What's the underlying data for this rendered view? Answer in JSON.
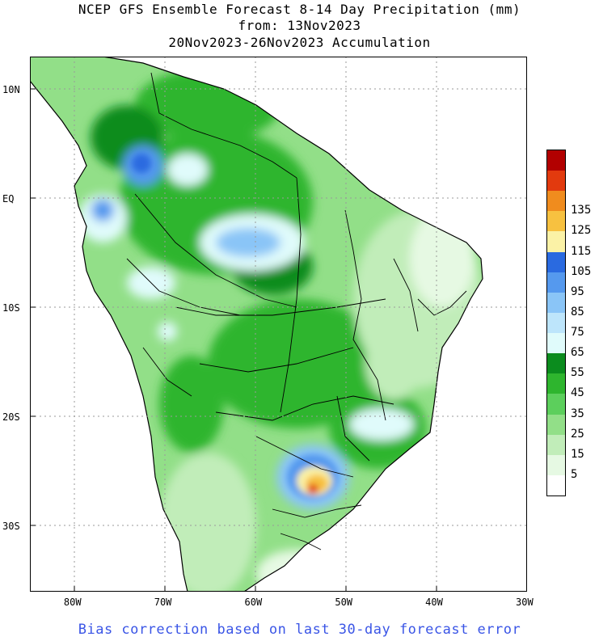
{
  "titles": {
    "line1": "NCEP GFS Ensemble Forecast 8-14 Day Precipitation (mm)",
    "line2": "from: 13Nov2023",
    "line3": "20Nov2023-26Nov2023 Accumulation"
  },
  "map": {
    "lon_range": [
      -85,
      -30
    ],
    "lat_range": [
      -36,
      13
    ],
    "lon_ticks": [
      {
        "value": -80,
        "label": "80W"
      },
      {
        "value": -70,
        "label": "70W"
      },
      {
        "value": -60,
        "label": "60W"
      },
      {
        "value": -50,
        "label": "50W"
      },
      {
        "value": -40,
        "label": "40W"
      },
      {
        "value": -30,
        "label": "30W"
      }
    ],
    "lat_ticks": [
      {
        "value": 10,
        "label": "10N"
      },
      {
        "value": 0,
        "label": "EQ"
      },
      {
        "value": -10,
        "label": "10S"
      },
      {
        "value": -20,
        "label": "20S"
      },
      {
        "value": -30,
        "label": "30S"
      }
    ],
    "grid": "dotted"
  },
  "legend": {
    "colors": [
      "#ffffff",
      "#e6f9e3",
      "#c1edb9",
      "#92df88",
      "#5ccf5c",
      "#2eb52e",
      "#0b8c1e",
      "#e0fbfb",
      "#bde5fb",
      "#8ac5f7",
      "#5599ee",
      "#2a6ae0",
      "#fbf2a6",
      "#f7c140",
      "#f08c1e",
      "#e23a0e",
      "#b20000"
    ],
    "labels": [
      "5",
      "15",
      "25",
      "35",
      "45",
      "55",
      "65",
      "75",
      "85",
      "95",
      "105",
      "115",
      "125",
      "135"
    ]
  },
  "footer": "Bias correction based on last 30-day forecast error"
}
